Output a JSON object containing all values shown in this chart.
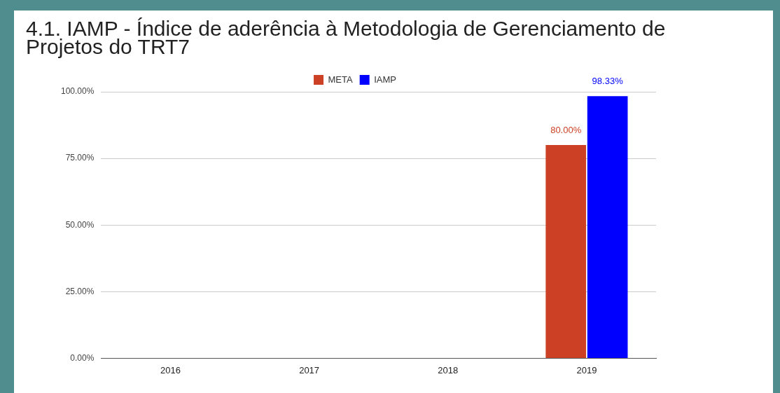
{
  "chart_data": {
    "type": "bar",
    "title": "4.1. IAMP - Índice de aderência à Metodologia de Gerenciamento de Projetos do TRT7",
    "categories": [
      "2016",
      "2017",
      "2018",
      "2019"
    ],
    "series": [
      {
        "name": "META",
        "color": "#cc4125",
        "values": [
          null,
          null,
          null,
          80
        ],
        "value_labels": [
          null,
          null,
          null,
          "80.00%"
        ]
      },
      {
        "name": "IAMP",
        "color": "#0000ff",
        "values": [
          null,
          null,
          null,
          98.33
        ],
        "value_labels": [
          null,
          null,
          null,
          "98.33%"
        ]
      }
    ],
    "ylim": [
      0,
      100
    ],
    "yticks": [
      {
        "value": 0,
        "label": "0.00%"
      },
      {
        "value": 25,
        "label": "25.00%"
      },
      {
        "value": 50,
        "label": "50.00%"
      },
      {
        "value": 75,
        "label": "75.00%"
      },
      {
        "value": 100,
        "label": "100.00%"
      }
    ],
    "grid": "y",
    "legend": "top"
  }
}
